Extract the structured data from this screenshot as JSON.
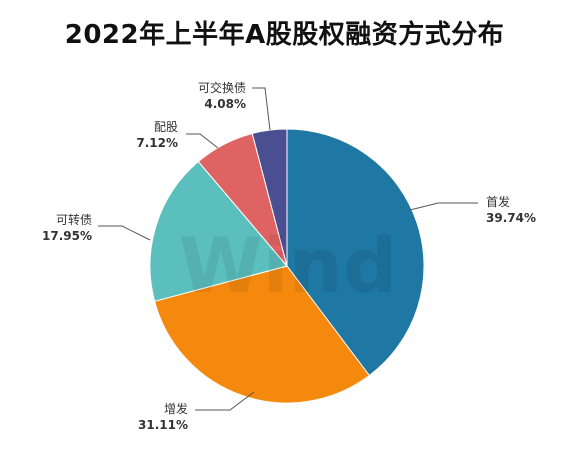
{
  "chart_data": {
    "type": "pie",
    "title": "2022年上半年A股股权融资方式分布",
    "categories": [
      "首发",
      "增发",
      "可转债",
      "配股",
      "可交换债"
    ],
    "values": [
      39.74,
      31.11,
      17.95,
      7.12,
      4.08
    ],
    "value_labels": [
      "39.74%",
      "31.11%",
      "17.95%",
      "7.12%",
      "4.08%"
    ],
    "colors": [
      "#1f77a3",
      "#f5890e",
      "#5bbfbd",
      "#e06363",
      "#4a4f91"
    ],
    "start_angle": "12 o'clock",
    "direction": "clockwise",
    "legend": "none"
  },
  "watermark": "Wind"
}
